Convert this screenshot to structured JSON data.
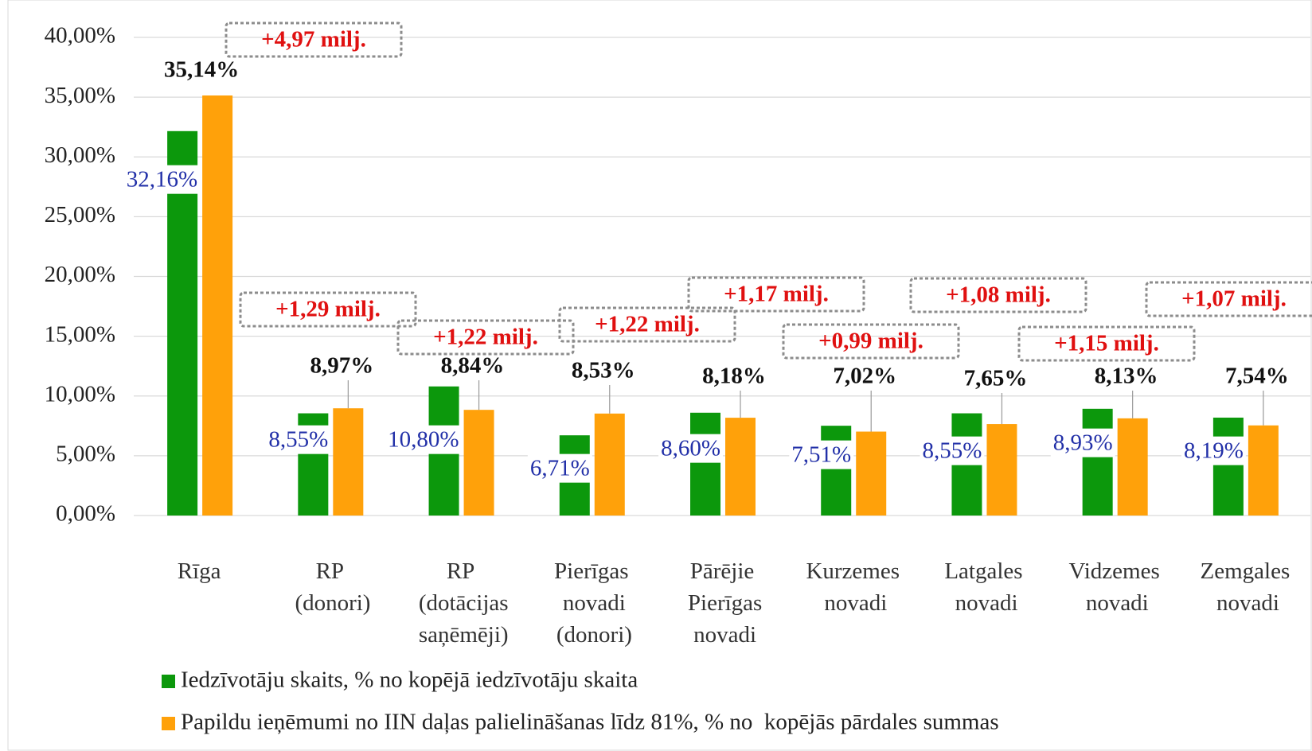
{
  "chart_data": {
    "type": "bar",
    "categories": [
      "Rīga",
      "RP (donori)",
      "RP (dotācijas saņēmēji)",
      "Pierīgas novadi (donori)",
      "Pārējie Pierīgas novadi",
      "Kurzemes novadi",
      "Latgales novadi",
      "Vidzemes novadi",
      "Zemgales novadi"
    ],
    "series": [
      {
        "name": "Iedzīvotāju skaits, % no kopējā iedzīvotāju skaita",
        "color": "#0c980c",
        "values": [
          32.16,
          8.55,
          10.8,
          6.71,
          8.6,
          7.51,
          8.55,
          8.93,
          8.19
        ],
        "value_labels": [
          "32,16%",
          "8,55%",
          "10,80%",
          "6,71%",
          "8,60%",
          "7,51%",
          "8,55%",
          "8,93%",
          "8,19%"
        ]
      },
      {
        "name": "Papildu ieņēmumi no IIN daļas palielināšanas līdz 81%, % no  kopējās pārdales summas",
        "color": "#ffa10a",
        "values": [
          35.14,
          8.97,
          8.84,
          8.53,
          8.18,
          7.02,
          7.65,
          8.13,
          7.54
        ],
        "value_labels": [
          "35,14%",
          "8,97%",
          "8,84%",
          "8,53%",
          "8,18%",
          "7,02%",
          "7,65%",
          "8,13%",
          "7,54%"
        ]
      }
    ],
    "annotations": [
      "+4,97 milj.",
      "+1,29 milj.",
      "+1,22 milj.",
      "+1,22 milj.",
      "+1,17 milj.",
      "+0,99 milj.",
      "+1,08 milj.",
      "+1,15 milj.",
      "+1,07 milj."
    ],
    "ylim": [
      0,
      40
    ],
    "yticks": [
      {
        "value": 0,
        "label": "0,00%"
      },
      {
        "value": 5,
        "label": "5,00%"
      },
      {
        "value": 10,
        "label": "10,00%"
      },
      {
        "value": 15,
        "label": "15,00%"
      },
      {
        "value": 20,
        "label": "20,00%"
      },
      {
        "value": 25,
        "label": "25,00%"
      },
      {
        "value": 30,
        "label": "30,00%"
      },
      {
        "value": 35,
        "label": "35,00%"
      },
      {
        "value": 40,
        "label": "40,00%"
      }
    ],
    "grid": true,
    "legend": "bottom"
  }
}
